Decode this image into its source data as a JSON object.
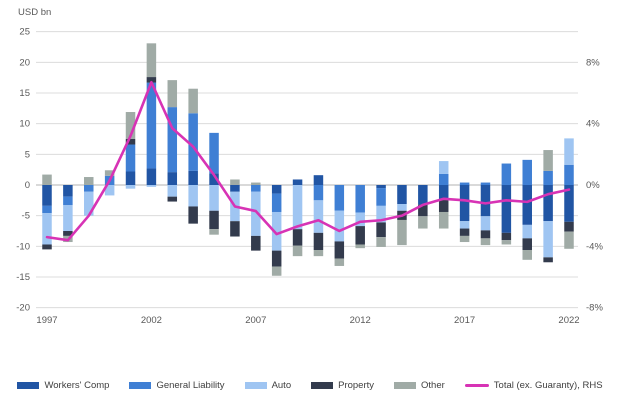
{
  "header": {
    "unit_label": "USD bn"
  },
  "chart_data": {
    "type": "bar",
    "subtype": "stacked-bar-with-line-overlay",
    "x": [
      1997,
      1998,
      1999,
      2000,
      2001,
      2002,
      2003,
      2004,
      2005,
      2006,
      2007,
      2008,
      2009,
      2010,
      2011,
      2012,
      2013,
      2014,
      2015,
      2016,
      2017,
      2018,
      2019,
      2020,
      2021,
      2022
    ],
    "series": [
      {
        "name": "Workers' Comp",
        "color": "#2155a4",
        "values": [
          -3.4,
          -1.9,
          0.0,
          0.0,
          2.2,
          2.7,
          2.1,
          2.3,
          1.9,
          -1.1,
          0.0,
          -1.4,
          0.9,
          1.6,
          0.0,
          0.0,
          -0.5,
          -3.1,
          -3.2,
          -2.4,
          -5.9,
          -5.1,
          -7.8,
          -6.5,
          -5.9,
          -6.0
        ]
      },
      {
        "name": "General Liability",
        "color": "#3f7fd4",
        "values": [
          -1.2,
          -1.4,
          -1.1,
          1.5,
          4.4,
          14.0,
          10.6,
          9.4,
          6.6,
          0.0,
          -1.1,
          -3.0,
          0.0,
          -2.5,
          -4.2,
          -4.5,
          -2.9,
          0.0,
          0.0,
          1.8,
          0.4,
          0.4,
          3.5,
          4.1,
          2.3,
          3.3
        ]
      },
      {
        "name": "Auto",
        "color": "#9fc5f2",
        "values": [
          -5.1,
          -4.2,
          -3.9,
          -1.7,
          -0.6,
          -0.3,
          -1.9,
          -3.5,
          -4.2,
          -4.8,
          -7.2,
          -6.3,
          -7.2,
          -5.3,
          -5.0,
          -2.2,
          -2.7,
          -1.1,
          0.0,
          2.1,
          -1.2,
          -2.3,
          0.0,
          -2.2,
          -5.9,
          4.3
        ]
      },
      {
        "name": "Property",
        "color": "#333b4d",
        "values": [
          -0.8,
          -0.8,
          0.0,
          0.0,
          0.9,
          0.9,
          -0.8,
          -2.8,
          -3.0,
          -2.5,
          -2.4,
          -2.6,
          -2.7,
          -2.8,
          -2.8,
          -3.0,
          -2.4,
          -1.5,
          -1.9,
          -2.0,
          -1.2,
          -1.3,
          -1.2,
          -1.9,
          -0.8,
          -1.6
        ]
      },
      {
        "name": "Other",
        "color": "#a0aba6",
        "values": [
          1.7,
          -1.0,
          1.3,
          0.9,
          4.4,
          5.5,
          4.4,
          4.0,
          -0.9,
          0.9,
          0.4,
          -1.5,
          -1.7,
          -1.0,
          -1.2,
          -0.6,
          -1.6,
          -4.1,
          -2.0,
          -2.7,
          -1.0,
          -1.1,
          -0.7,
          -1.6,
          3.4,
          -2.8
        ]
      }
    ],
    "line_series": {
      "name": "Total (ex. Guaranty), RHS",
      "color": "#d733b5",
      "axis": "right",
      "values_pct": [
        -3.4,
        -3.6,
        -2.0,
        0.3,
        3.2,
        6.7,
        3.7,
        2.5,
        0.65,
        -1.4,
        -1.7,
        -3.2,
        -2.7,
        -2.3,
        -3.0,
        -2.4,
        -2.3,
        -2.0,
        -1.3,
        -0.9,
        -1.0,
        -1.2,
        -1.0,
        -1.1,
        -0.6,
        -0.3
      ]
    },
    "left_axis": {
      "label": "USD bn",
      "ticks": [
        25,
        20,
        15,
        10,
        5,
        0,
        -5,
        -10,
        -15,
        -20
      ],
      "range": [
        -20,
        25
      ]
    },
    "right_axis": {
      "ticks": [
        "8%",
        "4%",
        "0%",
        "-4%",
        "-8%"
      ],
      "tick_values_pct": [
        8,
        4,
        0,
        -4,
        -8
      ],
      "range_pct": [
        -8,
        10
      ]
    },
    "x_ticks": [
      1997,
      2002,
      2007,
      2012,
      2017,
      2022
    ],
    "grid": true,
    "legend_position": "bottom",
    "colors": {
      "grid": "#dcdcdc",
      "zero_line": "#b3b3b3",
      "axis_text": "#595959"
    }
  },
  "legend": {
    "items": [
      {
        "label": "Workers' Comp"
      },
      {
        "label": "General Liability"
      },
      {
        "label": "Auto"
      },
      {
        "label": "Property"
      },
      {
        "label": "Other"
      },
      {
        "label": "Total (ex. Guaranty), RHS"
      }
    ]
  }
}
